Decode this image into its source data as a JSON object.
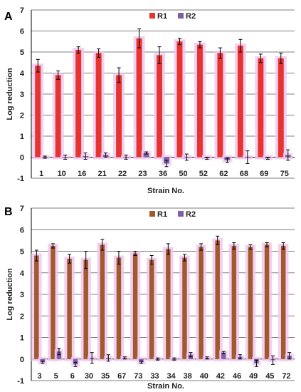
{
  "colors": {
    "r1_A": "#e8342f",
    "r1_B": "#a05a2c",
    "r2": "#7e60a8",
    "halo": "#f0c8f0",
    "grid": "#7f7f7f",
    "axis": "#000000"
  },
  "chart_data": [
    {
      "panel": "A",
      "type": "bar",
      "xlabel": "Strain No.",
      "ylabel": "Log reduction",
      "ylim": [
        -1,
        7
      ],
      "yticks": [
        -1,
        0,
        1,
        2,
        3,
        4,
        5,
        6,
        7
      ],
      "grid": true,
      "legend_position": "top-center",
      "categories": [
        "1",
        "10",
        "16",
        "21",
        "22",
        "23",
        "36",
        "50",
        "52",
        "62",
        "68",
        "69",
        "75"
      ],
      "series": [
        {
          "name": "R1",
          "values": [
            4.35,
            3.9,
            5.1,
            4.95,
            3.9,
            5.65,
            4.85,
            5.5,
            5.35,
            4.95,
            5.3,
            4.7,
            4.7
          ],
          "errors": [
            0.3,
            0.2,
            0.15,
            0.2,
            0.35,
            0.45,
            0.4,
            0.15,
            0.15,
            0.25,
            0.3,
            0.2,
            0.25
          ]
        },
        {
          "name": "R2",
          "values": [
            0.0,
            0.0,
            0.05,
            0.1,
            0.0,
            0.2,
            -0.3,
            0.0,
            -0.05,
            -0.15,
            0.0,
            -0.05,
            0.1
          ],
          "errors": [
            0.05,
            0.1,
            0.15,
            0.1,
            0.1,
            0.05,
            0.15,
            0.15,
            0.05,
            0.1,
            0.3,
            0.05,
            0.25
          ]
        }
      ]
    },
    {
      "panel": "B",
      "type": "bar",
      "xlabel": "Strain No.",
      "ylabel": "Log reduction",
      "ylim": [
        -1,
        7
      ],
      "yticks": [
        -1,
        0,
        1,
        2,
        3,
        4,
        5,
        6,
        7
      ],
      "grid": true,
      "legend_position": "top-center",
      "categories": [
        "3",
        "5",
        "6",
        "30",
        "35",
        "67",
        "73",
        "33",
        "34",
        "38",
        "40",
        "42",
        "46",
        "49",
        "45",
        "72"
      ],
      "series": [
        {
          "name": "R1",
          "values": [
            4.8,
            5.25,
            4.65,
            4.6,
            5.3,
            4.7,
            4.9,
            4.6,
            5.1,
            4.7,
            5.2,
            5.5,
            5.25,
            5.2,
            5.3,
            5.25
          ],
          "errors": [
            0.25,
            0.1,
            0.2,
            0.4,
            0.25,
            0.3,
            0.1,
            0.2,
            0.25,
            0.15,
            0.15,
            0.2,
            0.15,
            0.1,
            0.1,
            0.15
          ]
        },
        {
          "name": "R2",
          "values": [
            -0.15,
            0.35,
            -0.25,
            0.05,
            0.05,
            0.05,
            -0.15,
            0.0,
            0.0,
            0.2,
            0.05,
            0.3,
            0.1,
            -0.2,
            -0.05,
            0.15
          ],
          "errors": [
            0.05,
            0.15,
            0.1,
            0.25,
            0.15,
            0.05,
            0.05,
            0.05,
            0.05,
            0.1,
            0.05,
            0.05,
            0.1,
            0.15,
            0.2,
            0.15
          ]
        }
      ]
    }
  ]
}
